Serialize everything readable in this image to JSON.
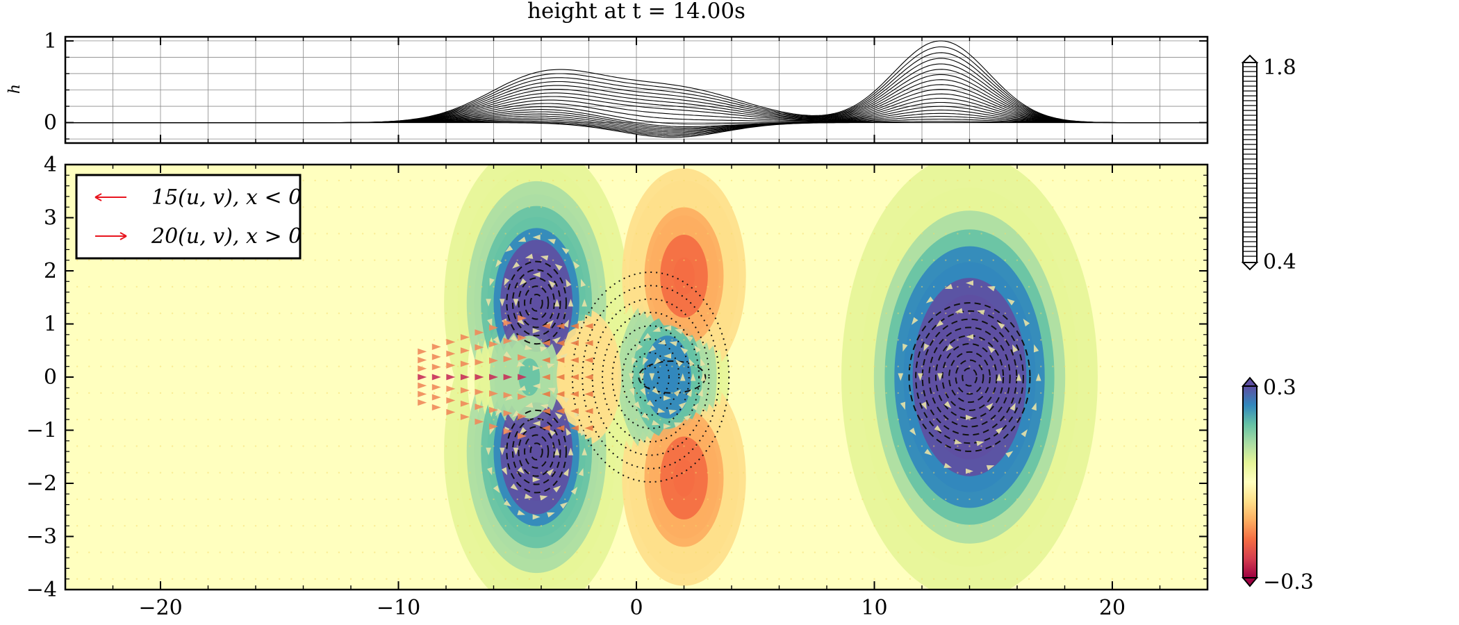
{
  "chart_data": [
    {
      "type": "line",
      "title": "height at t = 14.00s",
      "ylabel": "h",
      "xlim": [
        -24,
        24
      ],
      "ylim": [
        -0.25,
        1.05
      ],
      "yticks": [
        {
          "v": 0,
          "label": "0"
        },
        {
          "v": 1,
          "label": "1"
        }
      ],
      "grid": true,
      "description_series": "multiple line profiles of surface height h(x) along y cross-sections",
      "bumps": [
        {
          "center": -3.9,
          "amplitude": 0.55,
          "width": 2.4
        },
        {
          "center": 1.5,
          "amplitude": 0.42,
          "width": 3.0
        },
        {
          "center": 12.8,
          "amplitude": 1.0,
          "width": 2.0
        }
      ],
      "dip": {
        "center": 1.5,
        "amplitude": -0.18,
        "width": 2.2
      },
      "n_profiles": 20
    },
    {
      "type": "heatmap",
      "xlim": [
        -24,
        24
      ],
      "ylim": [
        -4,
        4
      ],
      "xticks": [
        {
          "v": -20,
          "label": "−20"
        },
        {
          "v": -10,
          "label": "−10"
        },
        {
          "v": 0,
          "label": "0"
        },
        {
          "v": 10,
          "label": "10"
        },
        {
          "v": 20,
          "label": "20"
        }
      ],
      "yticks": [
        {
          "v": 4,
          "label": "4"
        },
        {
          "v": 3,
          "label": "3"
        },
        {
          "v": 2,
          "label": "2"
        },
        {
          "v": 1,
          "label": "1"
        },
        {
          "v": 0,
          "label": "0"
        },
        {
          "v": -1,
          "label": "−1"
        },
        {
          "v": -2,
          "label": "−2"
        },
        {
          "v": -3,
          "label": "−3"
        },
        {
          "v": -4,
          "label": "−4"
        }
      ],
      "vortices": [
        {
          "x": -4.2,
          "y": 1.4,
          "strength": 0.34,
          "r": 1.6
        },
        {
          "x": -4.2,
          "y": -1.4,
          "strength": 0.34,
          "r": 1.6
        },
        {
          "x": -4.5,
          "y": 0,
          "strength": 0.15,
          "r": 1.2
        },
        {
          "x": 1.3,
          "y": 0,
          "strength": 0.24,
          "r": 1.2
        },
        {
          "x": 2.0,
          "y": 1.9,
          "strength": -0.17,
          "r": 1.2
        },
        {
          "x": 2.0,
          "y": -1.9,
          "strength": -0.17,
          "r": 1.2
        },
        {
          "x": -2.3,
          "y": 0,
          "strength": -0.08,
          "r": 0.9
        },
        {
          "x": 14.0,
          "y": 0,
          "strength": 0.42,
          "r": 2.3
        }
      ],
      "legend": [
        {
          "label": "15(u, v), x < 0",
          "color": "#e8141e",
          "direction": "left"
        },
        {
          "label": "20(u, v), x > 0",
          "color": "#e8141e",
          "direction": "right"
        }
      ],
      "legend_position": "upper-left"
    }
  ],
  "colorbars": [
    {
      "name": "height",
      "max_label": "1.8",
      "min_label": "0.4",
      "style": "hatched"
    },
    {
      "name": "vorticity",
      "max_label": "0.3",
      "min_label": "−0.3",
      "colormap": "Spectral"
    }
  ],
  "colors": {
    "arrow": "#e8141e",
    "spectral": [
      "#9e0142",
      "#d53e4f",
      "#f46d43",
      "#fdae61",
      "#fee08b",
      "#ffffbf",
      "#e6f598",
      "#abdda4",
      "#66c2a5",
      "#3288bd",
      "#5e4fa2"
    ]
  }
}
